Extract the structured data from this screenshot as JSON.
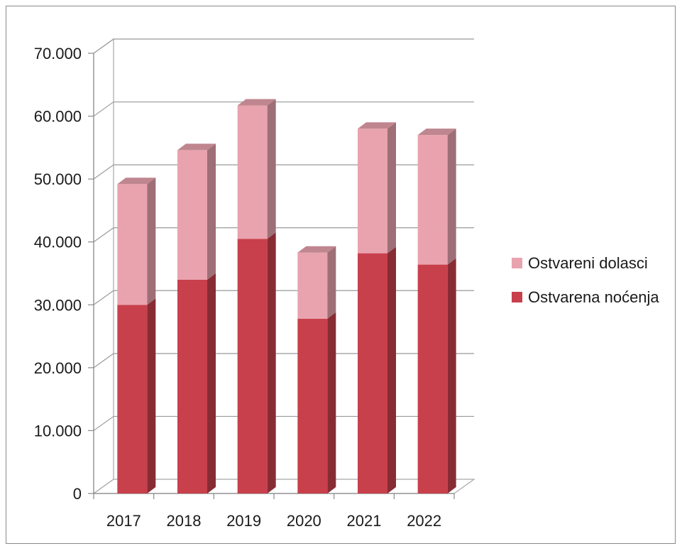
{
  "chart_data": {
    "type": "bar",
    "stacked": true,
    "three_d": true,
    "categories": [
      "2017",
      "2018",
      "2019",
      "2020",
      "2021",
      "2022"
    ],
    "series": [
      {
        "name": "Ostvarena noćenja",
        "values": [
          30000,
          34000,
          40500,
          27800,
          38200,
          36400
        ],
        "color": "#c8404c"
      },
      {
        "name": "Ostvareni dolasci",
        "values": [
          19200,
          20600,
          21200,
          10500,
          19800,
          20600
        ],
        "color": "#e9a3ae"
      }
    ],
    "y_ticks": [
      "0",
      "10.000",
      "20.000",
      "30.000",
      "40.000",
      "50.000",
      "60.000",
      "70.000"
    ],
    "ylim": [
      0,
      70000
    ],
    "grid": true,
    "legend_position": "right",
    "legend_order": [
      "Ostvareni dolasci",
      "Ostvarena noćenja"
    ]
  }
}
